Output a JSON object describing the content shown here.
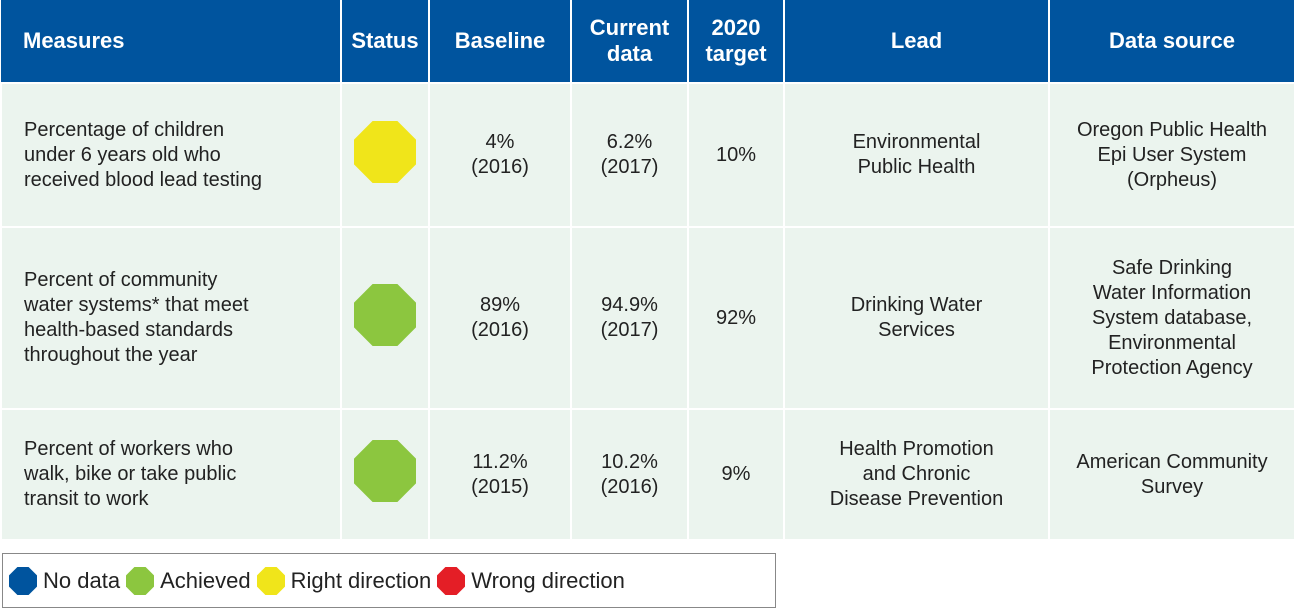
{
  "table": {
    "header": [
      "Measures",
      "Status",
      "Baseline",
      "Current\ndata",
      "2020\ntarget",
      "Lead",
      "Data source"
    ],
    "rows": [
      {
        "measure": "Percentage of children\nunder 6 years old who\nreceived blood lead testing",
        "status_color": "#f0e51a",
        "baseline": "4%\n(2016)",
        "current": "6.2%\n(2017)",
        "target": "10%",
        "lead": "Environmental\nPublic Health",
        "source": "Oregon Public Health\nEpi User System\n(Orpheus)"
      },
      {
        "measure": "Percent of community\nwater systems* that meet\nhealth-based standards\nthroughout the year",
        "status_color": "#8cc63f",
        "baseline": "89%\n(2016)",
        "current": "94.9%\n(2017)",
        "target": "92%",
        "lead": "Drinking Water\nServices",
        "source": "Safe Drinking\nWater Information\nSystem database,\nEnvironmental\nProtection Agency"
      },
      {
        "measure": "Percent of workers who\nwalk, bike or take public\ntransit to work",
        "status_color": "#8cc63f",
        "baseline": "11.2%\n(2015)",
        "current": "10.2%\n(2016)",
        "target": "9%",
        "lead": "Health Promotion\nand Chronic\nDisease Prevention",
        "source": "American Community\nSurvey"
      }
    ]
  },
  "legend": [
    {
      "name": "No data",
      "color": "#00549e"
    },
    {
      "name": "Achieved",
      "color": "#8cc63f"
    },
    {
      "name": "Right direction",
      "color": "#f0e51a"
    },
    {
      "name": "Wrong direction",
      "color": "#e41e26"
    }
  ]
}
